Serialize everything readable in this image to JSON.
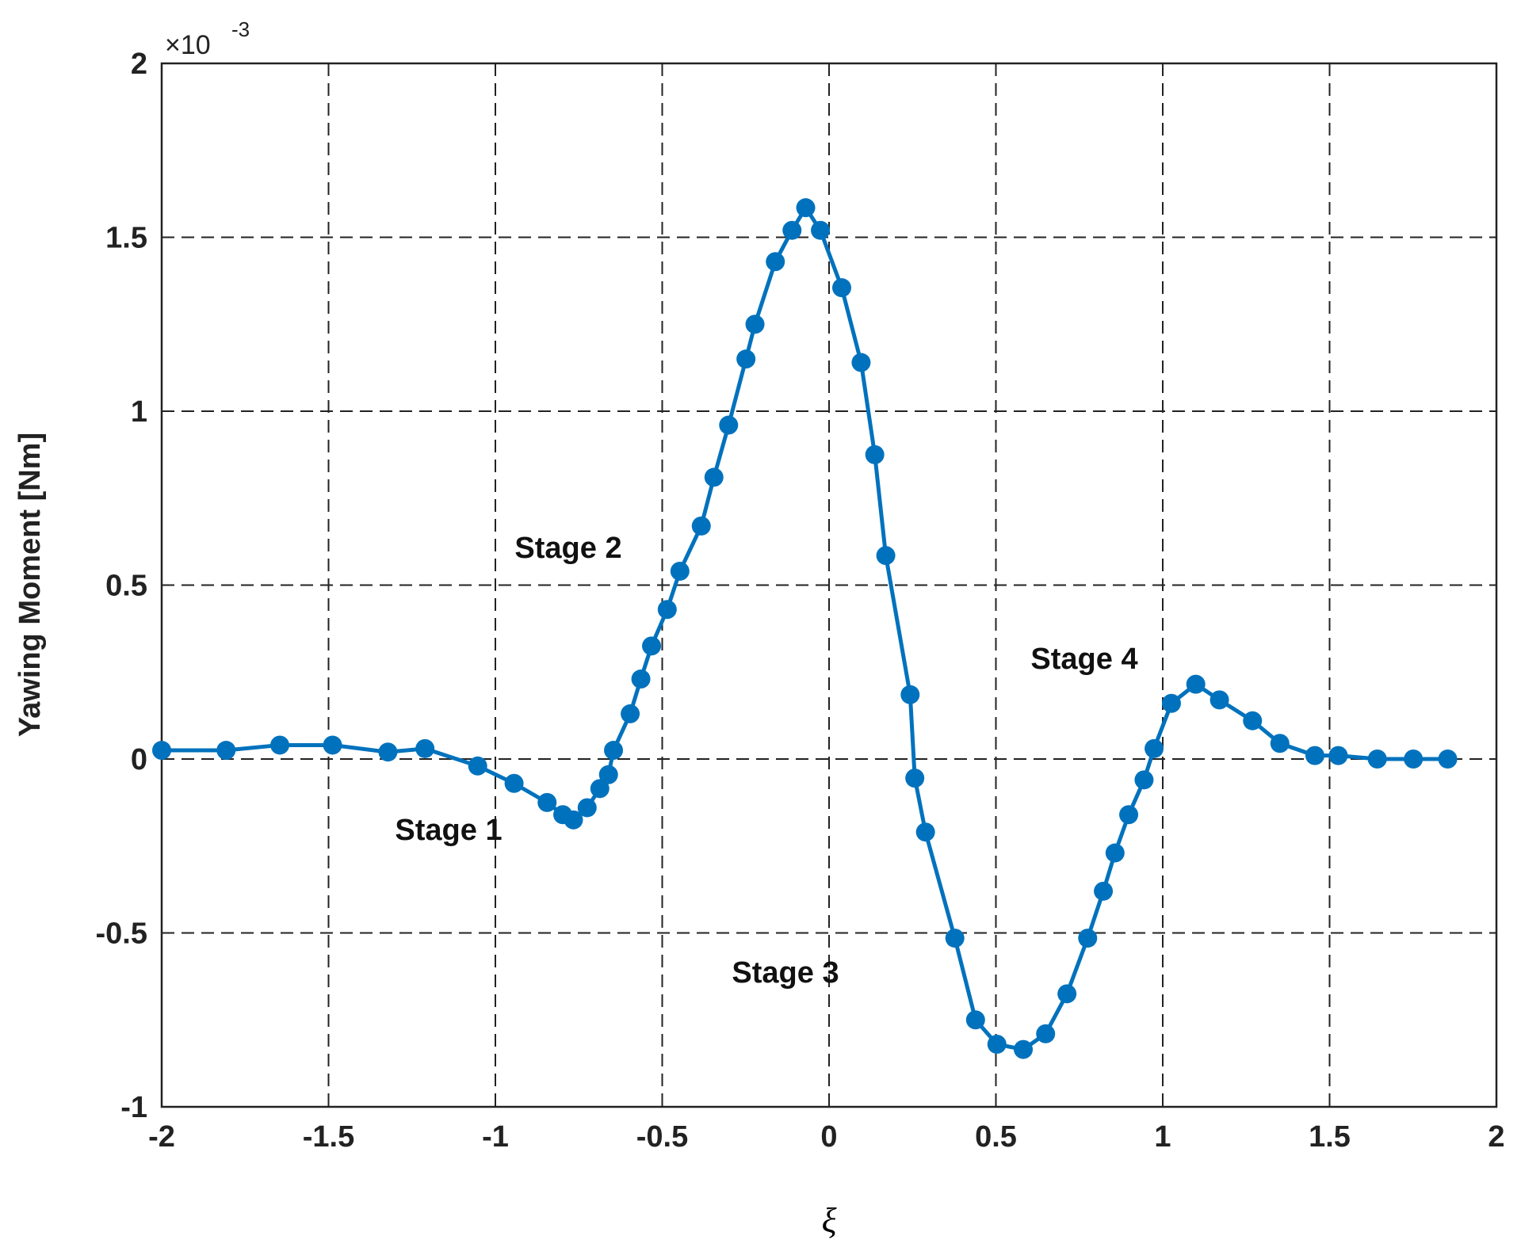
{
  "chart_data": {
    "type": "line",
    "xlabel": "ξ",
    "ylabel": "Yawing Moment [Nm]",
    "multiplier": {
      "base": "×10",
      "exponent": "-3"
    },
    "xlim": [
      -2,
      2
    ],
    "xticks": [
      -2,
      -1.5,
      -1,
      -0.5,
      0,
      0.5,
      1,
      1.5,
      2
    ],
    "ylim": [
      -1,
      2
    ],
    "yticks": [
      -1,
      -0.5,
      0,
      0.5,
      1,
      1.5,
      2
    ],
    "grid": true,
    "annotations": [
      "Stage 1",
      "Stage 2",
      "Stage 3",
      "Stage 4"
    ],
    "series": [
      {
        "color": "#0072bd",
        "x": [
          -2.0,
          -1.807,
          -1.646,
          -1.488,
          -1.322,
          -1.211,
          -1.053,
          -0.944,
          -0.845,
          -0.798,
          -0.766,
          -0.725,
          -0.687,
          -0.661,
          -0.646,
          -0.596,
          -0.564,
          -0.532,
          -0.485,
          -0.447,
          -0.383,
          -0.345,
          -0.301,
          -0.249,
          -0.222,
          -0.161,
          -0.111,
          -0.07,
          -0.026,
          0.038,
          0.096,
          0.137,
          0.17,
          0.243,
          0.257,
          0.289,
          0.377,
          0.439,
          0.503,
          0.582,
          0.649,
          0.713,
          0.775,
          0.822,
          0.857,
          0.898,
          0.944,
          0.974,
          1.026,
          1.099,
          1.17,
          1.269,
          1.351,
          1.456,
          1.526,
          1.643,
          1.751,
          1.854
        ],
        "values": [
          0.025,
          0.025,
          0.04,
          0.04,
          0.02,
          0.03,
          -0.02,
          -0.07,
          -0.125,
          -0.16,
          -0.175,
          -0.14,
          -0.085,
          -0.045,
          0.025,
          0.13,
          0.23,
          0.325,
          0.43,
          0.54,
          0.67,
          0.81,
          0.96,
          1.15,
          1.25,
          1.43,
          1.52,
          1.585,
          1.52,
          1.355,
          1.14,
          0.875,
          0.585,
          0.185,
          -0.055,
          -0.21,
          -0.515,
          -0.75,
          -0.82,
          -0.835,
          -0.79,
          -0.675,
          -0.515,
          -0.38,
          -0.27,
          -0.16,
          -0.06,
          0.03,
          0.16,
          0.215,
          0.17,
          0.11,
          0.045,
          0.01,
          0.01,
          0.0,
          0.0,
          0.0
        ]
      }
    ]
  }
}
